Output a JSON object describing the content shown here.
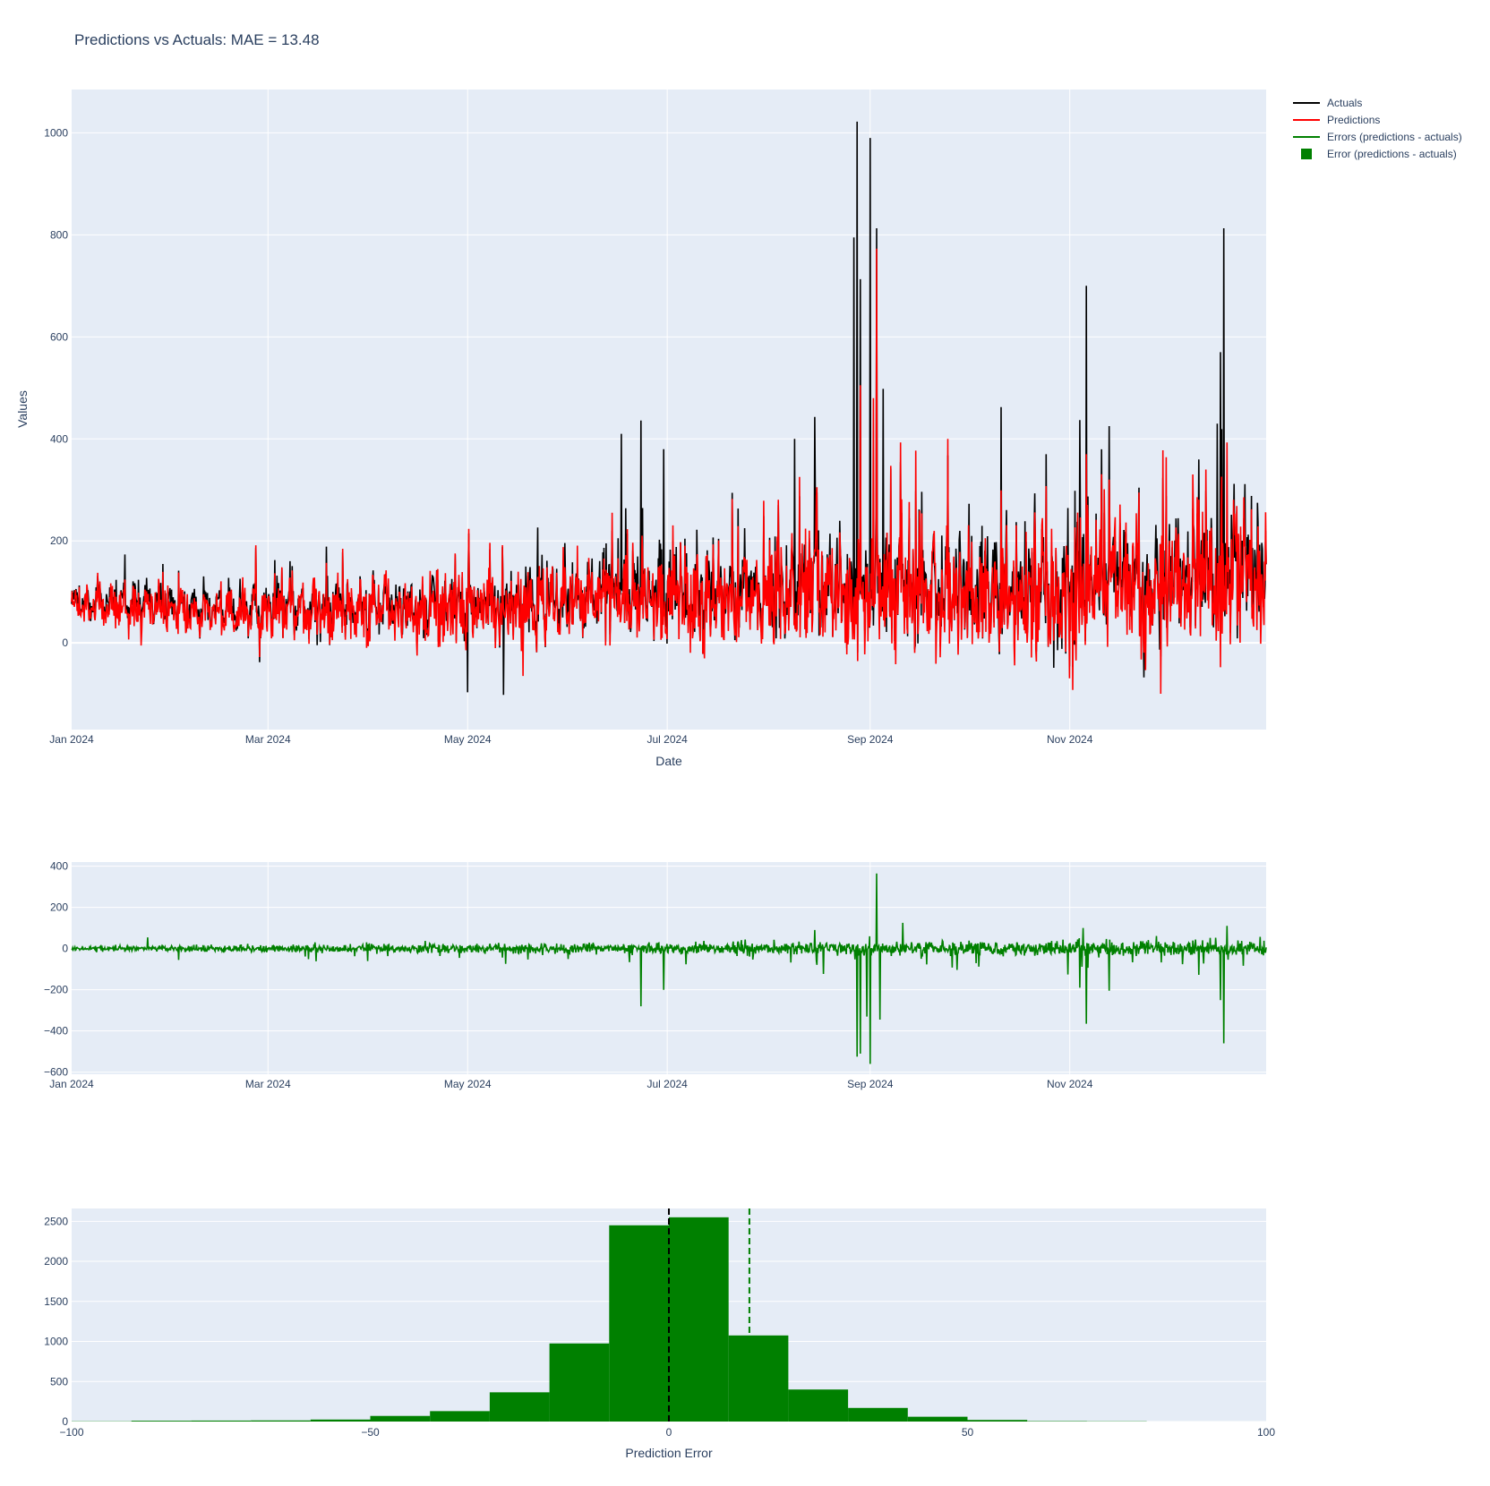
{
  "title": "Predictions vs Actuals: MAE = 13.48",
  "colors": {
    "plot_bg": "#E5ECF6",
    "grid": "#ffffff",
    "actuals": "#000000",
    "predictions": "#ff0000",
    "errors": "#008000",
    "text": "#2a3f5f"
  },
  "legend": {
    "placement": "top-right, outside plot",
    "items": [
      {
        "label": "Actuals",
        "symbol": "line",
        "color": "#000000"
      },
      {
        "label": "Predictions",
        "symbol": "line",
        "color": "#ff0000"
      },
      {
        "label": "Errors (predictions - actuals)",
        "symbol": "line",
        "color": "#008000"
      },
      {
        "label": "Error (predictions - actuals)",
        "symbol": "square",
        "color": "#008000"
      }
    ]
  },
  "chart_data": [
    {
      "type": "line",
      "xlabel": "Date",
      "ylabel": "Values",
      "xlim": [
        "2024-01-01",
        "2024-12-31"
      ],
      "ylim": [
        -170,
        1085
      ],
      "x_ticks": [
        "Jan 2024",
        "Mar 2024",
        "May 2024",
        "Jul 2024",
        "Sep 2024",
        "Nov 2024"
      ],
      "x_tick_dates": [
        "2024-01-01",
        "2024-03-01",
        "2024-05-01",
        "2024-07-01",
        "2024-09-01",
        "2024-11-01"
      ],
      "y_ticks": [
        0,
        200,
        400,
        600,
        800,
        1000
      ],
      "grid": true,
      "baseline": {
        "Jan": 80,
        "Feb": 65,
        "Mar": 70,
        "Apr": 70,
        "May": 80,
        "Jun": 95,
        "Jul": 100,
        "Aug": 105,
        "Sep": 110,
        "Oct": 95,
        "Nov": 120,
        "Dec": 130
      },
      "series": [
        {
          "name": "Actuals",
          "color": "#000000",
          "peaks": [
            {
              "x": "2024-08-27",
              "y": 795
            },
            {
              "x": "2024-08-28",
              "y": 1022
            },
            {
              "x": "2024-08-29",
              "y": 713
            },
            {
              "x": "2024-09-01",
              "y": 990
            },
            {
              "x": "2024-09-03",
              "y": 813
            },
            {
              "x": "2024-09-05",
              "y": 498
            },
            {
              "x": "2024-11-06",
              "y": 700
            },
            {
              "x": "2024-11-04",
              "y": 437
            },
            {
              "x": "2024-11-13",
              "y": 425
            },
            {
              "x": "2024-12-17",
              "y": 570
            },
            {
              "x": "2024-12-18",
              "y": 813
            },
            {
              "x": "2024-12-16",
              "y": 430
            },
            {
              "x": "2024-06-17",
              "y": 410
            },
            {
              "x": "2024-06-23",
              "y": 436
            },
            {
              "x": "2024-06-30",
              "y": 380
            },
            {
              "x": "2024-08-15",
              "y": 443
            },
            {
              "x": "2024-08-09",
              "y": 400
            },
            {
              "x": "2024-05-12",
              "y": -102
            },
            {
              "x": "2024-05-01",
              "y": -97
            }
          ]
        },
        {
          "name": "Predictions",
          "color": "#ff0000",
          "peaks": [
            {
              "x": "2024-09-03",
              "y": 773
            },
            {
              "x": "2024-09-02",
              "y": 480
            },
            {
              "x": "2024-08-29",
              "y": 505
            },
            {
              "x": "2024-12-19",
              "y": 393
            },
            {
              "x": "2024-11-06",
              "y": 370
            },
            {
              "x": "2024-11-13",
              "y": 320
            }
          ]
        }
      ]
    },
    {
      "type": "line",
      "xlabel": "",
      "ylabel": "",
      "xlim": [
        "2024-01-01",
        "2024-12-31"
      ],
      "ylim": [
        -610,
        420
      ],
      "x_ticks": [
        "Jan 2024",
        "Mar 2024",
        "May 2024",
        "Jul 2024",
        "Sep 2024",
        "Nov 2024"
      ],
      "x_tick_dates": [
        "2024-01-01",
        "2024-03-01",
        "2024-05-01",
        "2024-07-01",
        "2024-09-01",
        "2024-11-01"
      ],
      "y_ticks": [
        400,
        200,
        0,
        -200,
        -400,
        -600
      ],
      "y_tick_labels": [
        "400",
        "200",
        "0",
        "−200",
        "−400",
        "−600"
      ],
      "grid": true,
      "series": [
        {
          "name": "Errors (predictions - actuals)",
          "color": "#008000",
          "spikes": [
            {
              "x": "2024-06-23",
              "y": -280
            },
            {
              "x": "2024-06-30",
              "y": -200
            },
            {
              "x": "2024-08-28",
              "y": -525
            },
            {
              "x": "2024-08-29",
              "y": -510
            },
            {
              "x": "2024-08-31",
              "y": -330
            },
            {
              "x": "2024-09-01",
              "y": -560
            },
            {
              "x": "2024-09-03",
              "y": 365
            },
            {
              "x": "2024-09-04",
              "y": -345
            },
            {
              "x": "2024-11-06",
              "y": -365
            },
            {
              "x": "2024-11-04",
              "y": -190
            },
            {
              "x": "2024-11-13",
              "y": -205
            },
            {
              "x": "2024-12-18",
              "y": -460
            },
            {
              "x": "2024-12-17",
              "y": -250
            },
            {
              "x": "2024-12-19",
              "y": 110
            },
            {
              "x": "2024-09-11",
              "y": 125
            },
            {
              "x": "2024-11-05",
              "y": 100
            },
            {
              "x": "2024-08-15",
              "y": 90
            }
          ]
        }
      ]
    },
    {
      "type": "bar",
      "xlabel": "Prediction Error",
      "ylabel": "",
      "xlim": [
        -100,
        100
      ],
      "ylim": [
        0,
        2660
      ],
      "x_ticks": [
        -100,
        -50,
        0,
        50,
        100
      ],
      "x_tick_labels": [
        "−100",
        "−50",
        "0",
        "50",
        "100"
      ],
      "y_ticks": [
        0,
        500,
        1000,
        1500,
        2000,
        2500
      ],
      "grid": true,
      "bin_edges": [
        -100,
        -90,
        -80,
        -70,
        -60,
        -50,
        -40,
        -30,
        -20,
        -10,
        0,
        10,
        20,
        30,
        40,
        50,
        60,
        70,
        80,
        90,
        100
      ],
      "values": [
        3,
        10,
        12,
        14,
        25,
        70,
        130,
        365,
        975,
        2450,
        2550,
        1075,
        400,
        170,
        60,
        20,
        5,
        3,
        0,
        0
      ],
      "series": [
        {
          "name": "Error (predictions - actuals)",
          "color": "#008000"
        }
      ],
      "vlines": [
        {
          "x": 0,
          "color": "#000000",
          "style": "dash"
        },
        {
          "x": 13.48,
          "color": "#008000",
          "style": "dash"
        }
      ]
    }
  ]
}
